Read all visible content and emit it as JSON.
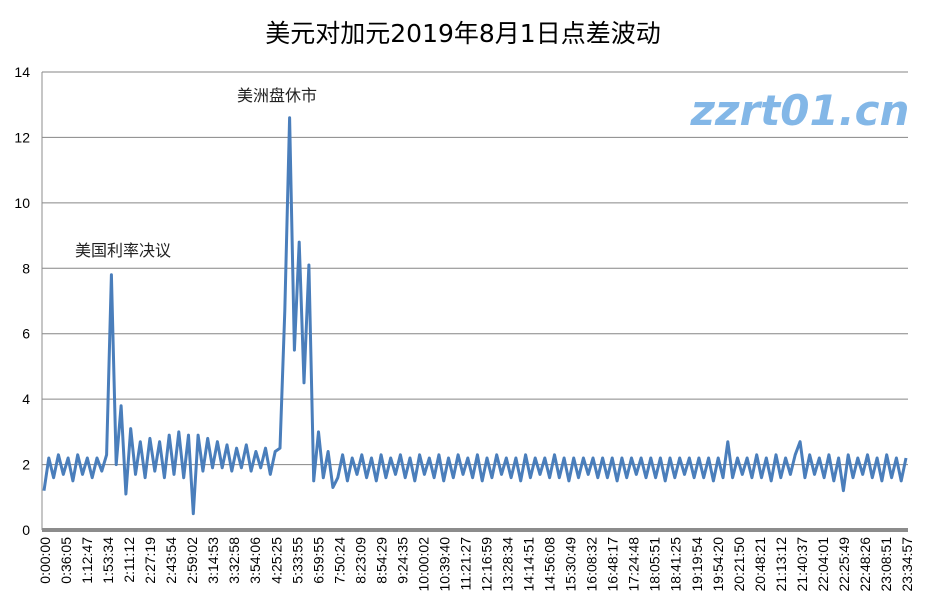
{
  "chart_data": {
    "type": "line",
    "title": "美元对加元2019年8月1日点差波动",
    "xlabel": "",
    "ylabel": "",
    "ylim": [
      0,
      14
    ],
    "yticks": [
      0,
      2,
      4,
      6,
      8,
      10,
      12,
      14
    ],
    "grid": true,
    "legend": "none",
    "series_color": "#4A7EBB",
    "x_tick_labels": [
      "0:00:00",
      "0:36:05",
      "1:12:47",
      "1:53:34",
      "2:11:12",
      "2:27:19",
      "2:43:54",
      "2:59:02",
      "3:14:53",
      "3:32:58",
      "3:54:06",
      "4:25:25",
      "5:33:55",
      "6:59:55",
      "7:50:24",
      "8:23:09",
      "8:54:29",
      "9:24:35",
      "10:00:02",
      "10:39:40",
      "11:21:27",
      "12:16:59",
      "13:28:34",
      "14:14:51",
      "14:56:08",
      "15:30:49",
      "16:08:32",
      "16:48:17",
      "17:24:48",
      "18:05:51",
      "18:41:25",
      "19:19:54",
      "19:54:20",
      "20:21:50",
      "20:48:21",
      "21:13:12",
      "21:40:37",
      "22:04:01",
      "22:25:49",
      "22:48:26",
      "23:08:51",
      "23:34:57"
    ],
    "annotations": [
      {
        "text": "美国利率决议",
        "at_time": "1:53:34",
        "value": 7.8
      },
      {
        "text": "美洲盘休市",
        "at_time": "5:33:55",
        "value": 12.6
      }
    ],
    "values": [
      1.2,
      2.2,
      1.6,
      2.3,
      1.7,
      2.2,
      1.5,
      2.3,
      1.7,
      2.2,
      1.6,
      2.2,
      1.8,
      2.3,
      7.8,
      2.0,
      3.8,
      1.1,
      3.1,
      1.7,
      2.7,
      1.6,
      2.8,
      1.8,
      2.7,
      1.6,
      2.9,
      1.7,
      3.0,
      1.6,
      2.9,
      0.5,
      2.9,
      1.8,
      2.8,
      1.9,
      2.7,
      1.9,
      2.6,
      1.8,
      2.5,
      1.9,
      2.6,
      1.8,
      2.4,
      1.9,
      2.5,
      1.7,
      2.4,
      2.5,
      6.7,
      12.6,
      5.5,
      8.8,
      4.5,
      8.1,
      1.5,
      3.0,
      1.6,
      2.4,
      1.3,
      1.6,
      2.3,
      1.5,
      2.2,
      1.7,
      2.3,
      1.6,
      2.2,
      1.5,
      2.3,
      1.6,
      2.2,
      1.7,
      2.3,
      1.6,
      2.2,
      1.5,
      2.3,
      1.7,
      2.2,
      1.6,
      2.3,
      1.5,
      2.2,
      1.6,
      2.3,
      1.7,
      2.2,
      1.6,
      2.3,
      1.5,
      2.2,
      1.6,
      2.3,
      1.7,
      2.2,
      1.6,
      2.2,
      1.5,
      2.3,
      1.6,
      2.2,
      1.7,
      2.2,
      1.6,
      2.3,
      1.6,
      2.2,
      1.5,
      2.2,
      1.6,
      2.2,
      1.7,
      2.2,
      1.6,
      2.2,
      1.6,
      2.2,
      1.5,
      2.2,
      1.6,
      2.2,
      1.7,
      2.2,
      1.6,
      2.2,
      1.6,
      2.2,
      1.5,
      2.2,
      1.6,
      2.2,
      1.7,
      2.2,
      1.6,
      2.2,
      1.6,
      2.2,
      1.5,
      2.2,
      1.6,
      2.7,
      1.6,
      2.2,
      1.7,
      2.2,
      1.6,
      2.3,
      1.6,
      2.2,
      1.5,
      2.3,
      1.6,
      2.2,
      1.7,
      2.3,
      2.7,
      1.6,
      2.3,
      1.7,
      2.2,
      1.6,
      2.3,
      1.5,
      2.2,
      1.2,
      2.3,
      1.6,
      2.2,
      1.7,
      2.3,
      1.6,
      2.2,
      1.5,
      2.3,
      1.6,
      2.2,
      1.5,
      2.2
    ]
  },
  "watermark": {
    "text": "zzrt01.cn"
  }
}
